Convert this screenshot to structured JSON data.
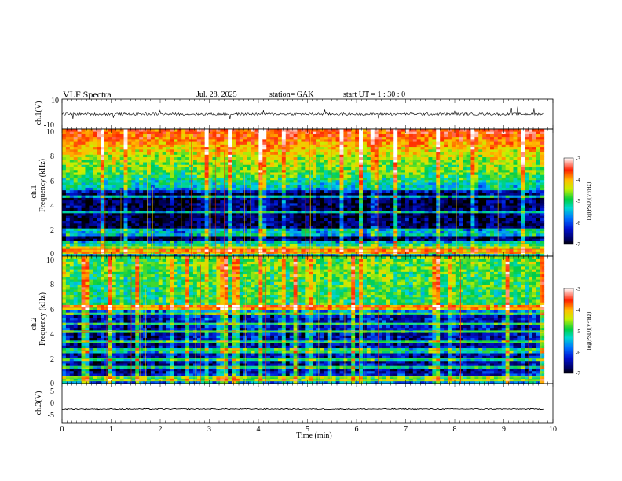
{
  "header": {
    "title": "VLF  Spectra",
    "date": "Jul.  28,  2025",
    "station": "station= GAK",
    "start_ut": "start  UT  =    1  : 30 : 0"
  },
  "chart_data": {
    "type": "spectrogram",
    "x_axis": {
      "label": "Time  (min)",
      "range": [
        0,
        10
      ],
      "ticks": [
        "0",
        "1",
        "2",
        "3",
        "4",
        "5",
        "6",
        "7",
        "8",
        "9",
        "10"
      ],
      "data_end": 9.82
    },
    "panels": [
      {
        "name": "ch1-waveform",
        "type": "line",
        "ylabel": "ch.1(V)",
        "ylim": [
          -10,
          10
        ],
        "ytick_labels": [
          "10",
          "-10"
        ],
        "baseline": 0,
        "spikes": [
          {
            "t": 0.22,
            "v": -3.2
          },
          {
            "t": 1.05,
            "v": -2.5
          },
          {
            "t": 2.0,
            "v": 2.4
          },
          {
            "t": 3.42,
            "v": -3.5
          },
          {
            "t": 4.1,
            "v": 2.6
          },
          {
            "t": 5.35,
            "v": 3.0
          },
          {
            "t": 6.45,
            "v": -2.8
          },
          {
            "t": 8.0,
            "v": 2.2
          },
          {
            "t": 9.15,
            "v": 4.0
          },
          {
            "t": 9.28,
            "v": 5.0
          },
          {
            "t": 9.62,
            "v": 3.5
          }
        ]
      },
      {
        "name": "ch1-spectrogram",
        "type": "heatmap",
        "ylabel_top": "ch.1",
        "ylabel": "Frequency  (kHz)",
        "ylim": [
          0,
          10
        ],
        "ytick_labels": [
          "0",
          "2",
          "4",
          "6",
          "8",
          "10"
        ],
        "profile": [
          {
            "f": 0,
            "v": -5.8
          },
          {
            "f": 0.5,
            "v": -5.2
          },
          {
            "f": 1.0,
            "v": -6.8
          },
          {
            "f": 5.0,
            "v": -6.8
          },
          {
            "f": 5.3,
            "v": -5.6
          },
          {
            "f": 6.5,
            "v": -5.0
          },
          {
            "f": 8.0,
            "v": -4.5
          },
          {
            "f": 9.0,
            "v": -4.0
          },
          {
            "f": 10.0,
            "v": -3.6
          }
        ],
        "lines_khz": [
          0.3,
          0.55,
          0.75,
          1.0,
          1.8,
          2.15,
          3.45,
          4.7
        ],
        "colorbar": {
          "label": "log(PSD)(V²/Hz)",
          "range": [
            -7,
            -3
          ],
          "ticks": [
            "-3",
            "-4",
            "-5",
            "-6",
            "-7"
          ]
        }
      },
      {
        "name": "ch2-spectrogram",
        "type": "heatmap",
        "ylabel_top": "ch.2",
        "ylabel": "Frequency  (kHz)",
        "ylim": [
          0,
          10
        ],
        "ytick_labels": [
          "0",
          "2",
          "4",
          "6",
          "8",
          "10"
        ],
        "profile": [
          {
            "f": 0,
            "v": -5.8
          },
          {
            "f": 0.6,
            "v": -6.2
          },
          {
            "f": 1.0,
            "v": -6.6
          },
          {
            "f": 5.5,
            "v": -6.4
          },
          {
            "f": 6.0,
            "v": -5.2
          },
          {
            "f": 10.0,
            "v": -4.9
          }
        ],
        "lines_khz": [
          0.25,
          0.5,
          1.3,
          1.95,
          2.6,
          3.25,
          4.1,
          4.7,
          5.5,
          6.0
        ],
        "colorbar": {
          "label": "log(PSD)(V²/Hz)",
          "range": [
            -7,
            -3
          ],
          "ticks": [
            "-3",
            "-4",
            "-5",
            "-6",
            "-7"
          ]
        }
      },
      {
        "name": "ch3-waveform",
        "type": "line",
        "ylabel": "ch.3(V)",
        "ylim": [
          -5,
          5
        ],
        "ytick_labels": [
          "5",
          "0",
          "-5"
        ],
        "baseline": -1.5
      }
    ]
  }
}
